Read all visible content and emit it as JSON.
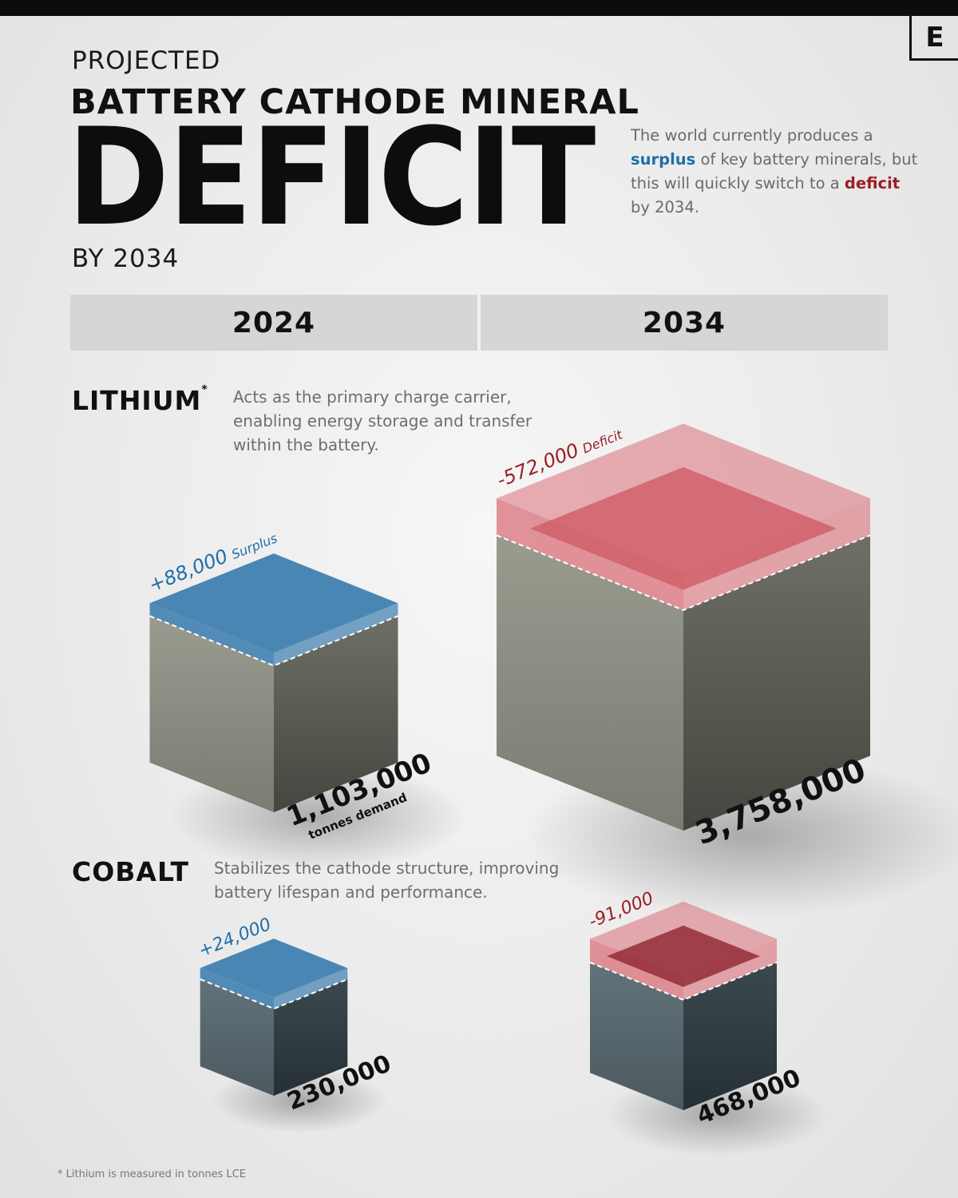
{
  "header": {
    "logo": "E",
    "kicker": "PROJECTED",
    "title": "BATTERY CATHODE MINERAL",
    "big_title": "DEFICIT",
    "by_year": "BY 2034"
  },
  "intro": {
    "part1": "The world currently produces a ",
    "surplus_word": "surplus",
    "part2": " of key battery minerals, but this will quickly switch to a ",
    "deficit_word": "deficit",
    "part3": " by 2034."
  },
  "years": [
    "2024",
    "2034"
  ],
  "colors": {
    "surplus": "#4a86b3",
    "surplus_label": "#1f6fa8",
    "deficit": "#d9707a",
    "deficit_label": "#9b1d25",
    "lithium_stone": "#8a8b80",
    "cobalt_stone": "#53656c"
  },
  "minerals": [
    {
      "name": "LITHIUM",
      "footnote_mark": "*",
      "description": "Acts as the primary charge carrier, enabling energy storage and transfer within the battery."
    },
    {
      "name": "COBALT",
      "description": "Stabilizes the cathode structure, improving battery lifespan and performance."
    }
  ],
  "footnote": "* Lithium is measured in tonnes LCE",
  "chart_data": [
    {
      "type": "table",
      "title": "LITHIUM",
      "series": [
        {
          "year": "2024",
          "demand": 1103000,
          "demand_label": "1,103,000",
          "demand_unit": "tonnes demand",
          "balance": 88000,
          "balance_label": "+88,000",
          "balance_type": "Surplus"
        },
        {
          "year": "2034",
          "demand": 3758000,
          "demand_label": "3,758,000",
          "demand_unit": "",
          "balance": -572000,
          "balance_label": "-572,000",
          "balance_type": "Deficit"
        }
      ]
    },
    {
      "type": "table",
      "title": "COBALT",
      "series": [
        {
          "year": "2024",
          "demand": 230000,
          "demand_label": "230,000",
          "demand_unit": "",
          "balance": 24000,
          "balance_label": "+24,000",
          "balance_type": ""
        },
        {
          "year": "2034",
          "demand": 468000,
          "demand_label": "468,000",
          "demand_unit": "",
          "balance": -91000,
          "balance_label": "-91,000",
          "balance_type": ""
        }
      ]
    }
  ]
}
